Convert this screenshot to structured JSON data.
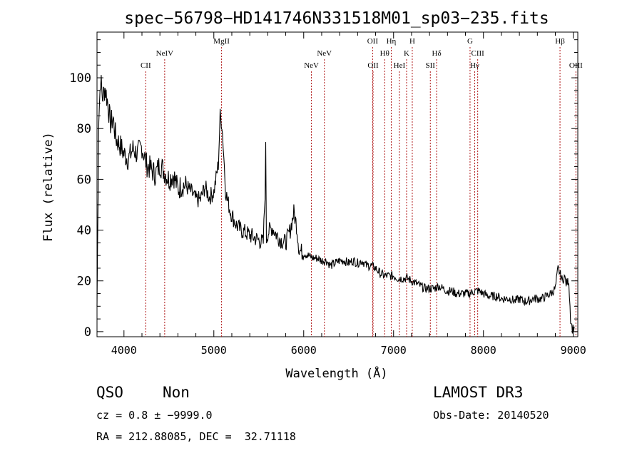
{
  "chart_data": {
    "type": "line",
    "title": "spec−56798−HD141746N331518M01_sp03−235.fits",
    "xlabel": "Wavelength (Å)",
    "ylabel": "Flux (relative)",
    "xlim": [
      3700,
      9050
    ],
    "ylim": [
      -2,
      118
    ],
    "xticks": [
      4000,
      5000,
      6000,
      7000,
      8000,
      9000
    ],
    "yticks": [
      0,
      20,
      40,
      60,
      80,
      100
    ],
    "grid": false,
    "series": [
      {
        "name": "flux",
        "x": [
          3700,
          3720,
          3740,
          3760,
          3790,
          3820,
          3850,
          3880,
          3910,
          3950,
          4000,
          4050,
          4100,
          4150,
          4200,
          4250,
          4300,
          4350,
          4400,
          4450,
          4500,
          4550,
          4600,
          4650,
          4700,
          4750,
          4800,
          4850,
          4900,
          4950,
          5000,
          5050,
          5070,
          5090,
          5110,
          5130,
          5150,
          5180,
          5200,
          5250,
          5300,
          5350,
          5400,
          5450,
          5500,
          5550,
          5570,
          5577,
          5585,
          5600,
          5650,
          5700,
          5750,
          5800,
          5850,
          5890,
          5920,
          5950,
          6000,
          6050,
          6100,
          6150,
          6200,
          6250,
          6300,
          6350,
          6400,
          6450,
          6500,
          6550,
          6600,
          6650,
          6700,
          6750,
          6800,
          6850,
          6900,
          6950,
          7000,
          7050,
          7100,
          7150,
          7200,
          7250,
          7300,
          7350,
          7400,
          7450,
          7500,
          7550,
          7600,
          7650,
          7700,
          7750,
          7800,
          7850,
          7900,
          7950,
          8000,
          8050,
          8100,
          8150,
          8200,
          8250,
          8300,
          8350,
          8400,
          8450,
          8500,
          8550,
          8600,
          8650,
          8700,
          8750,
          8800,
          8830,
          8850,
          8880,
          8900,
          8920,
          8950,
          8970,
          8990,
          9010
        ],
        "values": [
          10,
          85,
          100,
          92,
          96,
          90,
          82,
          84,
          76,
          74,
          70,
          68,
          72,
          70,
          73,
          66,
          64,
          62,
          66,
          63,
          60,
          62,
          56,
          58,
          57,
          55,
          52,
          52,
          57,
          53,
          55,
          66,
          85,
          82,
          70,
          56,
          52,
          48,
          46,
          42,
          40,
          39,
          38,
          37,
          36,
          35,
          55,
          72,
          36,
          39,
          41,
          38,
          36,
          35,
          40,
          47,
          42,
          32,
          31,
          30,
          29,
          29,
          28,
          28,
          26,
          27,
          28,
          28,
          27,
          28,
          27,
          28,
          26,
          26,
          25,
          23,
          22,
          22,
          22,
          21,
          21,
          21,
          20,
          19,
          18,
          17,
          17,
          17,
          18,
          17,
          16,
          16,
          15,
          15,
          15,
          15,
          16,
          16,
          15,
          14,
          14,
          14,
          13,
          13,
          13,
          12,
          13,
          12,
          12,
          13,
          13,
          13,
          14,
          15,
          17,
          25,
          23,
          20,
          22,
          19,
          20,
          5,
          1,
          2
        ]
      }
    ],
    "lines": [
      {
        "label": "CII",
        "x": 4242,
        "row": 3
      },
      {
        "label": "NeIV",
        "x": 4453,
        "row": 2
      },
      {
        "label": "MgII",
        "x": 5086,
        "row": 1
      },
      {
        "label": "NeV",
        "x": 6086,
        "row": 3
      },
      {
        "label": "NeV",
        "x": 6230,
        "row": 2
      },
      {
        "label": "OII",
        "x": 6767,
        "row": 1
      },
      {
        "label": "OII",
        "x": 6772,
        "row": 3
      },
      {
        "label": "Hθ",
        "x": 6901,
        "row": 2
      },
      {
        "label": "Hη",
        "x": 6974,
        "row": 1
      },
      {
        "label": "HeI",
        "x": 7065,
        "row": 3
      },
      {
        "label": "K",
        "x": 7145,
        "row": 2
      },
      {
        "label": "H",
        "x": 7208,
        "row": 1
      },
      {
        "label": "SII",
        "x": 7409,
        "row": 3
      },
      {
        "label": "Hδ",
        "x": 7479,
        "row": 2
      },
      {
        "label": "G",
        "x": 7851,
        "row": 1
      },
      {
        "label": "Hγ",
        "x": 7903,
        "row": 3
      },
      {
        "label": "CIII",
        "x": 7936,
        "row": 2
      },
      {
        "label": "Hβ",
        "x": 8852,
        "row": 1
      },
      {
        "label": "OIII",
        "x": 9029,
        "row": 3
      }
    ]
  },
  "info": {
    "class": "QSO",
    "subclass": "Non",
    "survey": "LAMOST DR3",
    "cz": "cz = 0.8 ± −9999.0",
    "obs_date": "Obs-Date: 20140520",
    "coords": "RA = 212.88085, DEC =  32.71118"
  }
}
